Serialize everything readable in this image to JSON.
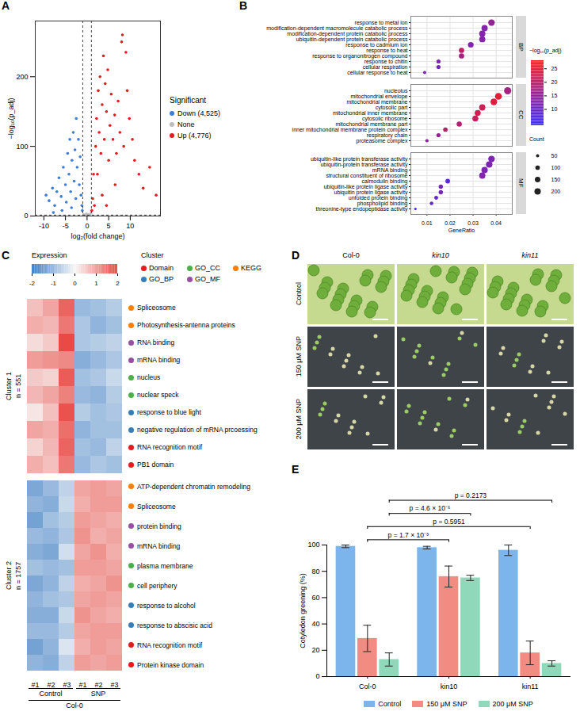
{
  "chart_data": [
    {
      "panel_label": "A",
      "type": "scatter",
      "xlabel": "log₂(fold change)",
      "ylabel": "−log₁₀(p_adj)",
      "xlim": [
        -12,
        17
      ],
      "ylim": [
        0,
        280
      ],
      "xticks": [
        -10,
        -5,
        0,
        5,
        10
      ],
      "yticks": [
        0,
        100,
        200
      ],
      "thresholds": {
        "x": [
          -1,
          1
        ],
        "y": 1.3
      },
      "legend_title": "Significant",
      "legend": "right",
      "series": [
        {
          "name": "None",
          "color": "#bdbdbd",
          "x": [
            -0.8,
            -0.5,
            -0.2,
            0,
            0.3,
            0.6,
            0.9,
            -0.9,
            0.5,
            0.1
          ],
          "y": [
            2,
            1,
            3,
            0.5,
            2,
            1.5,
            4,
            0.3,
            0.2,
            1
          ]
        },
        {
          "name": "Down (4,525)",
          "color": "#3b7dd8",
          "x": [
            -9.5,
            -8.8,
            -8,
            -7.5,
            -7,
            -6.5,
            -6,
            -5.5,
            -5,
            -4.8,
            -4.5,
            -4.2,
            -4,
            -3.8,
            -3.5,
            -3.2,
            -3,
            -2.8,
            -2.5,
            -2.3,
            -2,
            -1.8,
            -1.6,
            -1.4,
            -1.2,
            -1.1,
            -2.6,
            -3.6,
            -5.8,
            -7.8
          ],
          "y": [
            30,
            22,
            40,
            15,
            35,
            55,
            28,
            70,
            45,
            20,
            90,
            60,
            110,
            35,
            80,
            120,
            50,
            95,
            140,
            70,
            110,
            45,
            85,
            30,
            15,
            8,
            25,
            12,
            8,
            5
          ]
        },
        {
          "name": "Up (4,776)",
          "color": "#e41a1c",
          "x": [
            1.1,
            1.3,
            1.5,
            1.7,
            2,
            2.2,
            2.4,
            2.6,
            2.8,
            3,
            3.2,
            3.5,
            3.8,
            4,
            4.2,
            4.5,
            4.8,
            5,
            5.3,
            5.6,
            6,
            6.4,
            6.8,
            7.2,
            7.6,
            8,
            8.2,
            8.5,
            9,
            9.3,
            9.8,
            10.5,
            11,
            12,
            13,
            14.5,
            16,
            3.5,
            6.5,
            4.5
          ],
          "y": [
            8,
            25,
            60,
            15,
            100,
            140,
            60,
            180,
            120,
            200,
            90,
            160,
            230,
            110,
            190,
            150,
            210,
            80,
            130,
            175,
            110,
            145,
            90,
            165,
            120,
            250,
            260,
            100,
            235,
            180,
            140,
            110,
            80,
            60,
            40,
            70,
            30,
            30,
            45,
            15
          ]
        }
      ]
    },
    {
      "panel_label": "B",
      "type": "dot",
      "xlabel": "GeneRatio",
      "xlim": [
        0.003,
        0.047
      ],
      "xticks": [
        0.01,
        0.02,
        0.03,
        0.04
      ],
      "grid": true,
      "facets": [
        {
          "name": "BP",
          "terms": [
            "response to metal ion",
            "modification-dependent macromolecule catabolic process",
            "modification-dependent protein catabolic process",
            "ubiquitin-dependent protein catabolic process",
            "response to cadmium ion",
            "response to heat",
            "response to organonitrogen compound",
            "response to chitin",
            "cellular respiration",
            "cellular response to heat"
          ],
          "gene_ratio": [
            0.038,
            0.035,
            0.034,
            0.034,
            0.029,
            0.025,
            0.025,
            0.015,
            0.015,
            0.009
          ],
          "count": [
            210,
            190,
            190,
            185,
            160,
            140,
            140,
            85,
            85,
            50
          ],
          "neg_log10_padj": [
            15,
            13,
            13,
            13,
            13,
            20,
            17,
            12,
            11,
            12
          ]
        },
        {
          "name": "CC",
          "terms": [
            "nucleolus",
            "mitochondrial envelope",
            "mitochondrial membrane",
            "cytosolic part",
            "mitochondrial inner membrane",
            "cytosolic ribosome",
            "mitochondrial membrane part",
            "inner mitochondrial membrane protein complex",
            "respiratory chain",
            "proteasome complex"
          ],
          "gene_ratio": [
            0.045,
            0.041,
            0.039,
            0.034,
            0.032,
            0.031,
            0.024,
            0.018,
            0.015,
            0.01
          ],
          "count": [
            250,
            230,
            215,
            190,
            180,
            175,
            135,
            100,
            85,
            55
          ],
          "neg_log10_padj": [
            17,
            25,
            24,
            22,
            22,
            21,
            19,
            20,
            15,
            14
          ]
        },
        {
          "name": "MF",
          "terms": [
            "ubiquitin-like protein transferase activity",
            "ubiquitin-protein transferase activity",
            "mRNA binding",
            "structural constituent of ribosome",
            "calmodulin binding",
            "ubiquitin-like protein ligase activity",
            "ubiquitin protein ligase activity",
            "unfolded protein binding",
            "phospholipid binding",
            "threonine-type endopeptidase activity"
          ],
          "gene_ratio": [
            0.038,
            0.037,
            0.035,
            0.034,
            0.019,
            0.016,
            0.016,
            0.014,
            0.012,
            0.005
          ],
          "count": [
            210,
            205,
            195,
            190,
            105,
            90,
            90,
            75,
            65,
            28
          ],
          "neg_log10_padj": [
            12,
            12,
            12,
            13,
            8,
            11,
            11,
            9,
            8,
            5
          ]
        }
      ],
      "colorbar": {
        "title": "−log₁₀(p_adj)",
        "range": [
          4,
          28
        ],
        "ticks": [
          10,
          15,
          20,
          25
        ],
        "colors": [
          "#3b2bff",
          "#ff1a1a"
        ]
      },
      "size_legend": {
        "title": "Count",
        "values": [
          50,
          100,
          150,
          200
        ]
      }
    },
    {
      "panel_label": "C",
      "type": "heatmap",
      "columns": [
        "#1",
        "#2",
        "#3",
        "#1",
        "#2",
        "#3"
      ],
      "column_groups": [
        {
          "label": "Control",
          "span": 3
        },
        {
          "label": "SNP",
          "span": 3
        }
      ],
      "column_supergroup": "Col-0",
      "colorbar": {
        "title": "Expression",
        "range": [
          -2,
          2
        ],
        "ticks": [
          -2,
          -1,
          0,
          1,
          2
        ],
        "colors": [
          "#3b7dc4",
          "#f7f7f7",
          "#e8413a"
        ]
      },
      "legend_title": "Cluster",
      "category_legend": [
        {
          "name": "Domain",
          "color": "#e41a1c"
        },
        {
          "name": "GO_BP",
          "color": "#377eb8"
        },
        {
          "name": "GO_CC",
          "color": "#4daf4a"
        },
        {
          "name": "GO_MF",
          "color": "#984ea3"
        },
        {
          "name": "KEGG",
          "color": "#ff7f00"
        }
      ],
      "clusters": [
        {
          "name": "Cluster 1",
          "n_label": "n = 551",
          "rows": [
            [
              0.6,
              0.9,
              1.6,
              -1.0,
              -0.9,
              -0.7
            ],
            [
              0.8,
              0.7,
              1.4,
              -0.8,
              -1.1,
              -0.9
            ],
            [
              0.3,
              0.5,
              1.9,
              -0.8,
              -0.7,
              -0.6
            ],
            [
              1.0,
              1.1,
              1.2,
              -1.2,
              -1.0,
              -0.8
            ],
            [
              0.5,
              0.4,
              1.7,
              -0.9,
              -0.8,
              -0.5
            ],
            [
              0.7,
              0.9,
              1.3,
              -1.0,
              -1.1,
              -0.7
            ],
            [
              0.2,
              0.6,
              1.8,
              -0.7,
              -0.9,
              -0.8
            ],
            [
              0.9,
              0.8,
              1.5,
              -1.1,
              -0.9,
              -0.9
            ],
            [
              0.4,
              0.7,
              1.6,
              -0.9,
              -1.0,
              -0.6
            ],
            [
              0.8,
              0.6,
              1.4,
              -1.0,
              -0.8,
              -0.9
            ]
          ],
          "terms": [
            {
              "label": "Spliceosome",
              "category": "KEGG"
            },
            {
              "label": "Photosynthesis-antenna proteins",
              "category": "KEGG"
            },
            {
              "label": "RNA binding",
              "category": "GO_MF"
            },
            {
              "label": "mRNA binding",
              "category": "GO_MF"
            },
            {
              "label": "nucleus",
              "category": "GO_CC"
            },
            {
              "label": "nuclear speck",
              "category": "GO_CC"
            },
            {
              "label": "response to blue light",
              "category": "GO_BP"
            },
            {
              "label": "negative regulation of mRNA prcoessing",
              "category": "GO_BP"
            },
            {
              "label": "RNA recognition motif",
              "category": "Domain"
            },
            {
              "label": "PB1 domain",
              "category": "Domain"
            }
          ]
        },
        {
          "name": "Cluster 2",
          "n_label": "n = 1757",
          "rows": [
            [
              -1.3,
              -1.0,
              -0.6,
              0.9,
              1.0,
              0.9
            ],
            [
              -1.1,
              -1.2,
              -0.5,
              0.8,
              1.0,
              1.0
            ],
            [
              -1.4,
              -0.9,
              -0.7,
              1.0,
              0.9,
              0.8
            ],
            [
              -1.0,
              -1.1,
              -0.8,
              1.1,
              0.8,
              0.9
            ],
            [
              -1.2,
              -1.3,
              -0.4,
              0.9,
              1.1,
              0.8
            ],
            [
              -0.9,
              -1.0,
              -0.9,
              1.0,
              1.0,
              0.9
            ],
            [
              -1.3,
              -1.1,
              -0.6,
              0.8,
              0.9,
              1.1
            ],
            [
              -1.1,
              -0.9,
              -0.8,
              0.9,
              1.0,
              0.9
            ],
            [
              -1.2,
              -1.2,
              -0.5,
              1.1,
              0.9,
              0.8
            ],
            [
              -1.0,
              -1.0,
              -0.7,
              0.9,
              1.0,
              1.0
            ],
            [
              -1.4,
              -1.1,
              -0.3,
              0.8,
              1.0,
              0.9
            ],
            [
              -1.1,
              -1.2,
              -0.6,
              1.0,
              0.9,
              1.0
            ]
          ],
          "terms": [
            {
              "label": "ATP-dependent chromatin remodeling",
              "category": "KEGG"
            },
            {
              "label": "Spliceosome",
              "category": "KEGG"
            },
            {
              "label": "protein binding",
              "category": "GO_MF"
            },
            {
              "label": "mRNA binding",
              "category": "GO_MF"
            },
            {
              "label": "plasma membrane",
              "category": "GO_CC"
            },
            {
              "label": "cell periphery",
              "category": "GO_CC"
            },
            {
              "label": "response to alcohol",
              "category": "GO_BP"
            },
            {
              "label": "response to abscisic acid",
              "category": "GO_BP"
            },
            {
              "label": "RNA recognition motif",
              "category": "Domain"
            },
            {
              "label": "Protein kinase domain",
              "category": "Domain"
            }
          ]
        }
      ]
    },
    {
      "panel_label": "E",
      "type": "bar",
      "categories": [
        "Col-0",
        "kin10",
        "kin11"
      ],
      "ylabel": "Cotyledon greening (%)",
      "ylim": [
        0,
        100
      ],
      "yticks": [
        0,
        20,
        40,
        60,
        80,
        100
      ],
      "legend": "bottom",
      "series": [
        {
          "name": "Control",
          "color": "#7cb5ec",
          "values": [
            99,
            98,
            96
          ],
          "errors": [
            1,
            1,
            4
          ]
        },
        {
          "name": "150 μM SNP",
          "color": "#f28b82",
          "values": [
            29,
            76,
            18
          ],
          "errors": [
            10,
            8,
            9
          ]
        },
        {
          "name": "200 μM SNP",
          "color": "#8fd8b9",
          "values": [
            13,
            75,
            10
          ],
          "errors": [
            5,
            2,
            2
          ]
        }
      ],
      "comparisons": [
        {
          "series": "150 μM SNP",
          "from": "Col-0",
          "to": "kin10",
          "label": "p = 1.7 × 10⁻³"
        },
        {
          "series": "150 μM SNP",
          "from": "Col-0",
          "to": "kin11",
          "label": "p = 0.5951"
        },
        {
          "series": "200 μM SNP",
          "from": "Col-0",
          "to": "kin10",
          "label": "p = 4.6 × 10⁻⁵"
        },
        {
          "series": "200 μM SNP",
          "from": "Col-0",
          "to": "kin11",
          "label": "p = 0.2173"
        }
      ]
    }
  ],
  "photo_panel": {
    "panel_label": "D",
    "columns": [
      "Col-0",
      "kin10",
      "kin11"
    ],
    "rows": [
      "Control",
      "150 μM SNP",
      "200 μM SNP"
    ]
  }
}
